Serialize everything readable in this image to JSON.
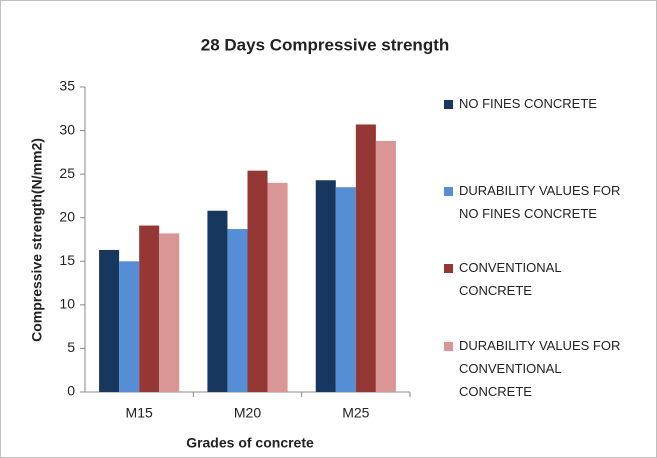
{
  "chart_data": {
    "type": "bar",
    "title": "28 Days Compressive strength",
    "x_label": "Grades of concrete",
    "y_label": "Compressive strength(N/mm2)",
    "categories": [
      "M15",
      "M20",
      "M25"
    ],
    "series": [
      {
        "name": "NO FINES CONCRETE",
        "color": "#17375e",
        "values": [
          16.3,
          20.8,
          24.3
        ]
      },
      {
        "name": "DURABILITY VALUES FOR NO FINES CONCRETE",
        "color": "#558ed5",
        "values": [
          15.0,
          18.7,
          23.5
        ]
      },
      {
        "name": "CONVENTIONAL CONCRETE",
        "color": "#953735",
        "values": [
          19.1,
          25.4,
          30.7
        ]
      },
      {
        "name": "DURABILITY VALUES FOR CONVENTIONAL CONCRETE",
        "color": "#d99694",
        "values": [
          18.2,
          24.0,
          28.8
        ]
      }
    ],
    "ylim": [
      0,
      35
    ],
    "yticks": [
      0,
      5,
      10,
      15,
      20,
      25,
      30,
      35
    ],
    "grid": false,
    "legend": "right"
  }
}
